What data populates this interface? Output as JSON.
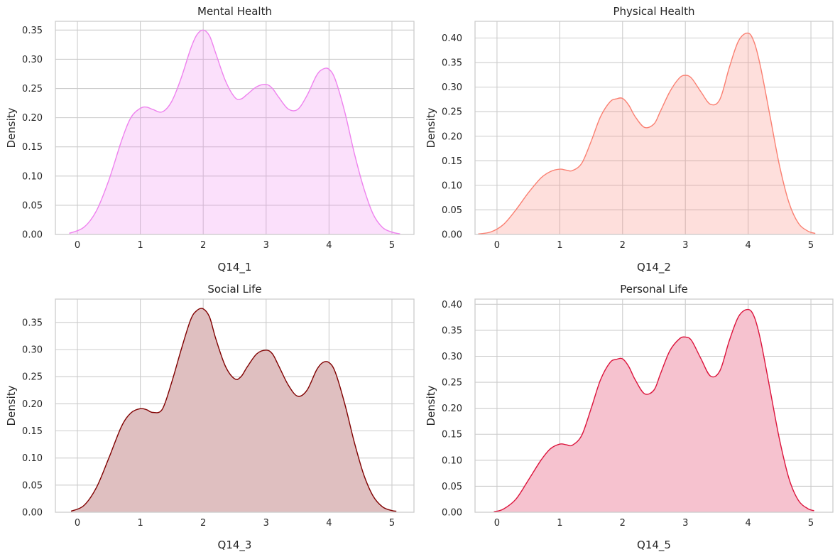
{
  "chart_data": [
    {
      "type": "area",
      "title": "Mental Health",
      "xlabel": "Q14_1",
      "ylabel": "Density",
      "color": "#ee82ee",
      "xlim": [
        -0.35,
        5.35
      ],
      "ylim": [
        0,
        0.365
      ],
      "xticks": [
        "0",
        "1",
        "2",
        "3",
        "4",
        "5"
      ],
      "yticks": [
        "0.00",
        "0.05",
        "0.10",
        "0.15",
        "0.20",
        "0.25",
        "0.30",
        "0.35"
      ],
      "grid": true,
      "series": [
        {
          "x": [
            -0.13,
            0.1,
            0.3,
            0.5,
            0.7,
            0.85,
            1.0,
            1.1,
            1.2,
            1.35,
            1.5,
            1.65,
            1.8,
            1.9,
            2.0,
            2.1,
            2.2,
            2.35,
            2.5,
            2.6,
            2.7,
            2.85,
            3.0,
            3.1,
            3.2,
            3.35,
            3.5,
            3.65,
            3.8,
            3.9,
            4.0,
            4.1,
            4.25,
            4.4,
            4.55,
            4.7,
            4.85,
            5.0,
            5.13
          ],
          "y": [
            0.002,
            0.012,
            0.04,
            0.093,
            0.16,
            0.2,
            0.216,
            0.218,
            0.214,
            0.21,
            0.228,
            0.268,
            0.318,
            0.342,
            0.35,
            0.34,
            0.31,
            0.264,
            0.235,
            0.232,
            0.24,
            0.253,
            0.257,
            0.25,
            0.235,
            0.215,
            0.214,
            0.238,
            0.272,
            0.283,
            0.283,
            0.265,
            0.21,
            0.14,
            0.08,
            0.035,
            0.012,
            0.004,
            0.001
          ]
        }
      ]
    },
    {
      "type": "area",
      "title": "Physical Health",
      "xlabel": "Q14_2",
      "ylabel": "Density",
      "color": "#fa8072",
      "xlim": [
        -0.35,
        5.35
      ],
      "ylim": [
        0,
        0.434
      ],
      "xticks": [
        "0",
        "1",
        "2",
        "3",
        "4",
        "5"
      ],
      "yticks": [
        "0.00",
        "0.05",
        "0.10",
        "0.15",
        "0.20",
        "0.25",
        "0.30",
        "0.35",
        "0.40"
      ],
      "grid": true,
      "series": [
        {
          "x": [
            -0.3,
            -0.1,
            0.1,
            0.3,
            0.5,
            0.7,
            0.85,
            1.0,
            1.1,
            1.2,
            1.35,
            1.5,
            1.65,
            1.8,
            1.9,
            2.0,
            2.1,
            2.2,
            2.35,
            2.5,
            2.6,
            2.75,
            2.9,
            3.0,
            3.1,
            3.25,
            3.4,
            3.55,
            3.7,
            3.85,
            4.0,
            4.1,
            4.2,
            4.35,
            4.5,
            4.65,
            4.8,
            4.95,
            5.07
          ],
          "y": [
            0.001,
            0.005,
            0.02,
            0.05,
            0.085,
            0.115,
            0.128,
            0.133,
            0.131,
            0.13,
            0.145,
            0.19,
            0.24,
            0.27,
            0.276,
            0.277,
            0.263,
            0.24,
            0.218,
            0.225,
            0.25,
            0.29,
            0.318,
            0.324,
            0.318,
            0.29,
            0.265,
            0.275,
            0.34,
            0.395,
            0.41,
            0.39,
            0.34,
            0.24,
            0.14,
            0.065,
            0.023,
            0.007,
            0.002
          ]
        }
      ]
    },
    {
      "type": "area",
      "title": "Social Life",
      "xlabel": "Q14_3",
      "ylabel": "Density",
      "color": "#800000",
      "fill": "#dfbfc0",
      "xlim": [
        -0.35,
        5.35
      ],
      "ylim": [
        0,
        0.393
      ],
      "xticks": [
        "0",
        "1",
        "2",
        "3",
        "4",
        "5"
      ],
      "yticks": [
        "0.00",
        "0.05",
        "0.10",
        "0.15",
        "0.20",
        "0.25",
        "0.30",
        "0.35"
      ],
      "grid": true,
      "series": [
        {
          "x": [
            -0.1,
            0.1,
            0.3,
            0.5,
            0.7,
            0.85,
            1.0,
            1.1,
            1.2,
            1.35,
            1.5,
            1.65,
            1.8,
            1.9,
            2.0,
            2.1,
            2.2,
            2.35,
            2.5,
            2.6,
            2.7,
            2.85,
            3.0,
            3.1,
            3.2,
            3.35,
            3.5,
            3.65,
            3.8,
            3.9,
            4.0,
            4.1,
            4.25,
            4.4,
            4.55,
            4.7,
            4.85,
            5.0,
            5.07
          ],
          "y": [
            0.002,
            0.012,
            0.045,
            0.1,
            0.158,
            0.183,
            0.191,
            0.189,
            0.184,
            0.19,
            0.24,
            0.3,
            0.355,
            0.372,
            0.375,
            0.36,
            0.32,
            0.27,
            0.246,
            0.25,
            0.268,
            0.292,
            0.299,
            0.292,
            0.27,
            0.235,
            0.214,
            0.225,
            0.262,
            0.276,
            0.276,
            0.258,
            0.2,
            0.13,
            0.07,
            0.03,
            0.01,
            0.003,
            0.002
          ]
        }
      ]
    },
    {
      "type": "area",
      "title": "Personal Life",
      "xlabel": "Q14_5",
      "ylabel": "Density",
      "color": "#dc143c",
      "fill": "#f6c2cf",
      "xlim": [
        -0.35,
        5.35
      ],
      "ylim": [
        0,
        0.41
      ],
      "xticks": [
        "0",
        "1",
        "2",
        "3",
        "4",
        "5"
      ],
      "yticks": [
        "0.00",
        "0.05",
        "0.10",
        "0.15",
        "0.20",
        "0.25",
        "0.30",
        "0.35",
        "0.40"
      ],
      "grid": true,
      "series": [
        {
          "x": [
            -0.05,
            0.1,
            0.3,
            0.5,
            0.7,
            0.85,
            1.0,
            1.1,
            1.2,
            1.35,
            1.5,
            1.65,
            1.8,
            1.9,
            2.0,
            2.1,
            2.2,
            2.35,
            2.5,
            2.6,
            2.75,
            2.9,
            3.0,
            3.1,
            3.25,
            3.4,
            3.55,
            3.7,
            3.85,
            4.0,
            4.1,
            4.2,
            4.35,
            4.5,
            4.65,
            4.8,
            4.95,
            5.05
          ],
          "y": [
            0.001,
            0.006,
            0.025,
            0.062,
            0.1,
            0.122,
            0.131,
            0.13,
            0.129,
            0.148,
            0.2,
            0.255,
            0.288,
            0.294,
            0.295,
            0.28,
            0.255,
            0.228,
            0.235,
            0.265,
            0.31,
            0.333,
            0.337,
            0.33,
            0.295,
            0.262,
            0.272,
            0.33,
            0.377,
            0.39,
            0.375,
            0.33,
            0.235,
            0.14,
            0.065,
            0.023,
            0.007,
            0.003
          ]
        }
      ]
    }
  ]
}
